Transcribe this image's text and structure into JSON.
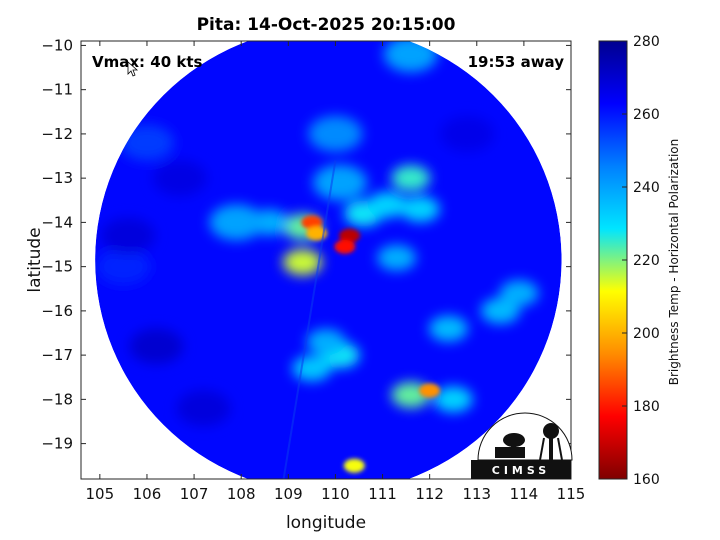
{
  "chart_data": {
    "type": "heatmap",
    "title": "Pita: 14-Oct-2025 20:15:00",
    "xlabel": "longitude",
    "ylabel": "latitude",
    "xlim": [
      104.6,
      115
    ],
    "ylim": [
      -19.8,
      -9.9
    ],
    "xticks": [
      105,
      106,
      107,
      108,
      109,
      110,
      111,
      112,
      113,
      114,
      115
    ],
    "yticks": [
      -10,
      -11,
      -12,
      -13,
      -14,
      -15,
      -16,
      -17,
      -18,
      -19
    ],
    "annotations": {
      "top_left": "Vmax: 40 kts",
      "top_right": "19:53 away"
    },
    "swath": {
      "center_lon": 109.85,
      "center_lat": -14.85,
      "radius_deg": 4.95
    },
    "background_value": 262,
    "colorbar": {
      "label": "Brightness Temp - Horizontal Polarization",
      "range": [
        160,
        280
      ],
      "ticks": [
        160,
        180,
        200,
        220,
        240,
        260,
        280
      ],
      "colormap": [
        "#7f0000",
        "#ff0000",
        "#ff8c00",
        "#ffff00",
        "#00e5ff",
        "#0080ff",
        "#0000ff",
        "#00008f"
      ]
    },
    "features": [
      {
        "lon": 110.3,
        "lat": -14.3,
        "value": 168
      },
      {
        "lon": 110.2,
        "lat": -14.55,
        "value": 178
      },
      {
        "lon": 109.5,
        "lat": -14.0,
        "value": 185
      },
      {
        "lon": 109.6,
        "lat": -14.25,
        "value": 200
      },
      {
        "lon": 109.3,
        "lat": -14.1,
        "value": 222
      },
      {
        "lon": 109.3,
        "lat": -14.9,
        "value": 215
      },
      {
        "lon": 110.6,
        "lat": -13.8,
        "value": 228
      },
      {
        "lon": 111.1,
        "lat": -13.6,
        "value": 232
      },
      {
        "lon": 111.6,
        "lat": -13.0,
        "value": 225
      },
      {
        "lon": 111.8,
        "lat": -13.7,
        "value": 232
      },
      {
        "lon": 111.3,
        "lat": -14.8,
        "value": 238
      },
      {
        "lon": 112.0,
        "lat": -17.8,
        "value": 195
      },
      {
        "lon": 111.6,
        "lat": -17.9,
        "value": 222
      },
      {
        "lon": 112.5,
        "lat": -18.0,
        "value": 232
      },
      {
        "lon": 110.1,
        "lat": -17.0,
        "value": 228
      },
      {
        "lon": 109.5,
        "lat": -17.3,
        "value": 234
      },
      {
        "lon": 109.8,
        "lat": -16.7,
        "value": 238
      },
      {
        "lon": 113.5,
        "lat": -16.0,
        "value": 236
      },
      {
        "lon": 113.9,
        "lat": -15.6,
        "value": 238
      },
      {
        "lon": 112.4,
        "lat": -16.4,
        "value": 236
      },
      {
        "lon": 110.4,
        "lat": -19.5,
        "value": 212
      },
      {
        "lon": 110.1,
        "lat": -13.1,
        "value": 240
      },
      {
        "lon": 108.6,
        "lat": -14.0,
        "value": 238
      },
      {
        "lon": 107.9,
        "lat": -14.0,
        "value": 240
      },
      {
        "lon": 111.6,
        "lat": -10.2,
        "value": 240
      },
      {
        "lon": 110.0,
        "lat": -12.0,
        "value": 244
      },
      {
        "lon": 105.5,
        "lat": -15.0,
        "value": 258
      },
      {
        "lon": 106.2,
        "lat": -16.8,
        "value": 270
      },
      {
        "lon": 105.6,
        "lat": -14.3,
        "value": 268
      },
      {
        "lon": 106.7,
        "lat": -13.0,
        "value": 267
      },
      {
        "lon": 107.2,
        "lat": -18.2,
        "value": 268
      },
      {
        "lon": 106.0,
        "lat": -12.2,
        "value": 255
      },
      {
        "lon": 112.8,
        "lat": -12.0,
        "value": 266
      }
    ]
  },
  "logo": {
    "text": "CIMSS"
  }
}
